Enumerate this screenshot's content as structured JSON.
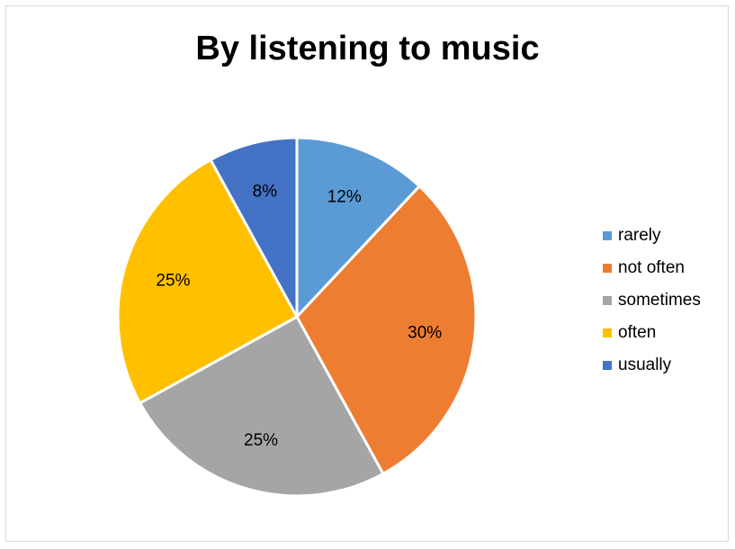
{
  "chart_data": {
    "type": "pie",
    "title": "By listening to music",
    "categories": [
      "rarely",
      "not often",
      "sometimes",
      "often",
      "usually"
    ],
    "values": [
      12,
      30,
      25,
      25,
      8
    ],
    "labels": [
      "12%",
      "30%",
      "25%",
      "25%",
      "8%"
    ],
    "colors": [
      "#5B9BD5",
      "#ED7D31",
      "#A5A5A5",
      "#FFC000",
      "#4472C4"
    ],
    "legend": "right"
  }
}
